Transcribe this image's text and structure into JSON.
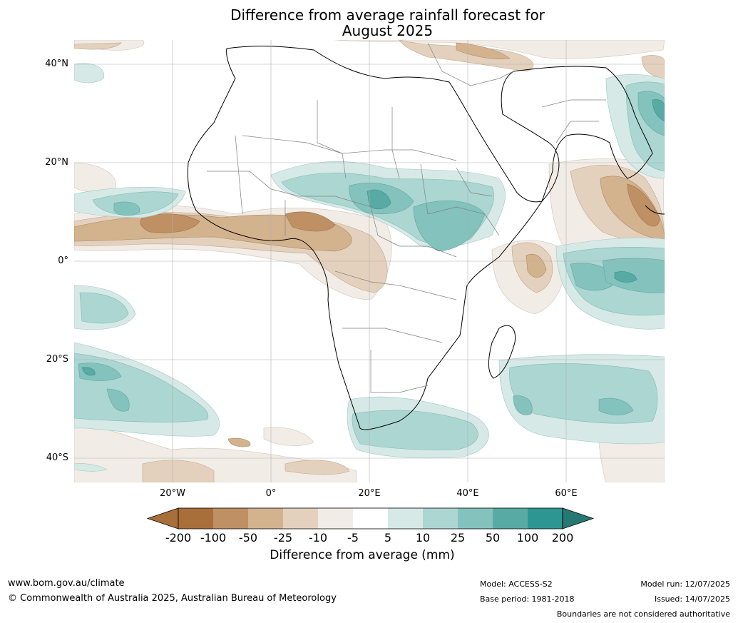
{
  "title": {
    "line1": "Difference from average rainfall forecast for",
    "line2": "August 2025"
  },
  "map": {
    "region": "Africa",
    "lat_labels": [
      "40°N",
      "20°N",
      "0°",
      "20°S",
      "40°S"
    ],
    "lon_labels": [
      "20°W",
      "0°",
      "20°E",
      "40°E",
      "60°E"
    ]
  },
  "colorbar": {
    "ticks": [
      "-200",
      "-100",
      "-50",
      "-25",
      "-10",
      "-5",
      "5",
      "10",
      "25",
      "50",
      "100",
      "200"
    ],
    "colors": [
      "#a86f3a",
      "#be9063",
      "#d3b28e",
      "#e4d1bd",
      "#f2ece6",
      "#ffffff",
      "#d6e9e6",
      "#acd6d2",
      "#83c2bd",
      "#58aaa5",
      "#2e9692"
    ],
    "extend_low_color": "#a86f3a",
    "extend_high_color": "#267873",
    "label": "Difference from average (mm)"
  },
  "footer": {
    "website": "www.bom.gov.au/climate",
    "copyright": "© Commonwealth of Australia 2025, Australian Bureau of Meteorology",
    "model": "Model: ACCESS-S2",
    "base_period": "Base period: 1981-2018",
    "model_run": "Model run: 12/07/2025",
    "issued": "Issued: 14/07/2025",
    "disclaimer": "Boundaries are not considered authoritative"
  }
}
